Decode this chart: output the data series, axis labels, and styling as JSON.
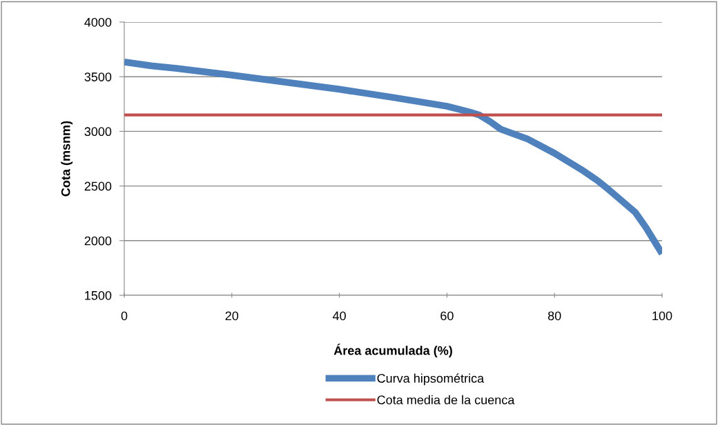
{
  "chart_data": {
    "type": "line",
    "xlabel": "Área acumulada (%)",
    "ylabel": "Cota (msnm)",
    "xlim": [
      0,
      100
    ],
    "xticks": [
      0,
      20,
      40,
      60,
      80,
      100
    ],
    "ylim": [
      1500,
      4000
    ],
    "yticks": [
      1500,
      2000,
      2500,
      3000,
      3500,
      4000
    ],
    "grid": "y",
    "legend": "bottom",
    "marker": "none",
    "line_style": "solid",
    "series": [
      {
        "name": "Curva hipsométrica",
        "color": "#4f81bd",
        "x": [
          0,
          5,
          10,
          20,
          30,
          40,
          50,
          60,
          64,
          66,
          68,
          70,
          75,
          80,
          85,
          88,
          90,
          95,
          97,
          99,
          100
        ],
        "values": [
          3635,
          3600,
          3575,
          3515,
          3450,
          3385,
          3310,
          3230,
          3180,
          3150,
          3090,
          3020,
          2930,
          2800,
          2650,
          2550,
          2470,
          2260,
          2120,
          1960,
          1880
        ]
      },
      {
        "name": "Cota media de la cuenca",
        "color": "#c0504d",
        "x": [
          0,
          100
        ],
        "values": [
          3150,
          3150
        ]
      }
    ]
  }
}
